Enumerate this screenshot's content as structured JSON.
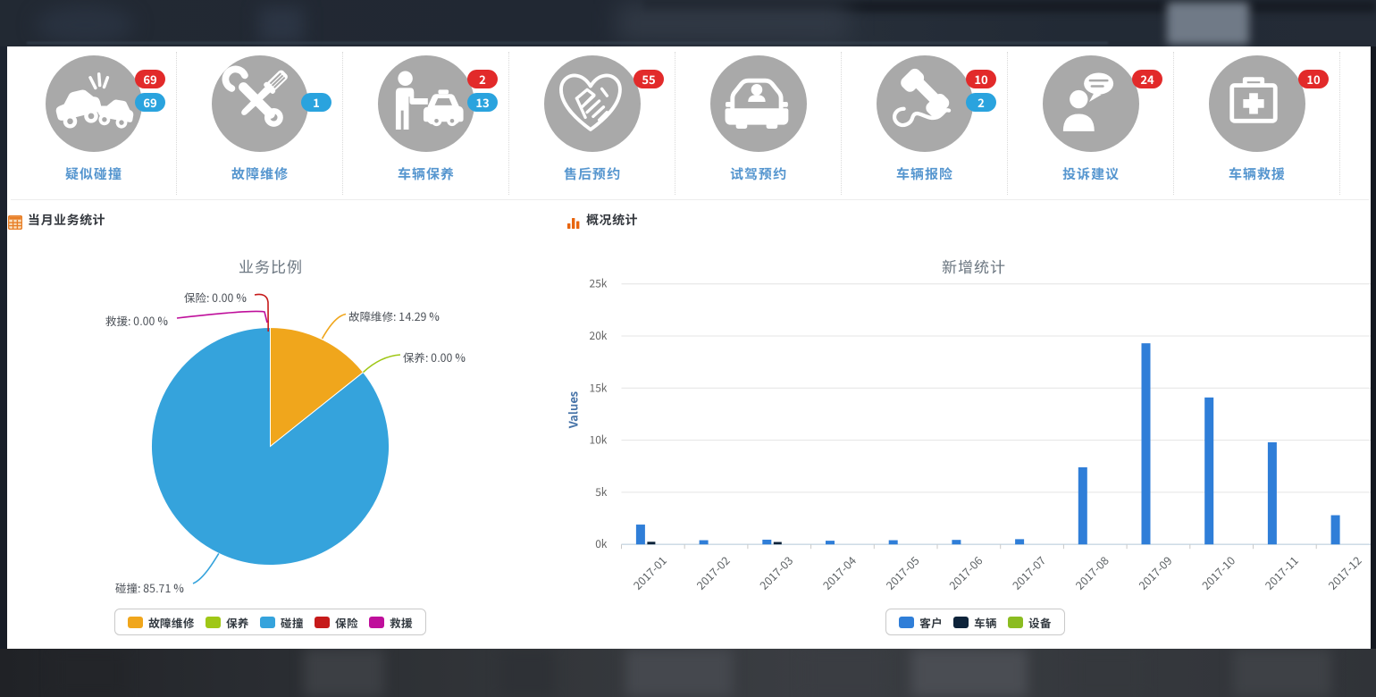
{
  "quick_actions": {
    "badge_colors": {
      "red": "#e22a2a",
      "blue": "#2aa3de"
    },
    "items": [
      {
        "label": "疑似碰撞",
        "icon": "car-crash-icon",
        "badges": {
          "red": "69",
          "blue": "69"
        }
      },
      {
        "label": "故障维修",
        "icon": "repair-tools-icon",
        "badges": {
          "blue": "1"
        }
      },
      {
        "label": "车辆保养",
        "icon": "car-maintenance-icon",
        "badges": {
          "red": "2",
          "blue": "13"
        }
      },
      {
        "label": "售后预约",
        "icon": "handshake-heart-icon",
        "badges": {
          "red": "55"
        }
      },
      {
        "label": "试驾预约",
        "icon": "test-drive-car-icon",
        "badges": {}
      },
      {
        "label": "车辆报险",
        "icon": "phone-handset-icon",
        "badges": {
          "red": "10",
          "blue": "2"
        }
      },
      {
        "label": "投诉建议",
        "icon": "person-speech-bubble-icon",
        "badges": {
          "red": "24"
        }
      },
      {
        "label": "车辆救援",
        "icon": "first-aid-kit-icon",
        "badges": {
          "red": "10"
        }
      }
    ]
  },
  "sections": {
    "left": {
      "title": "当月业务统计",
      "icon": "calendar-grid-icon",
      "icon_color": "#e87e26"
    },
    "right": {
      "title": "概况统计",
      "icon": "mini-bar-chart-icon",
      "icon_color": "#e8650f"
    }
  },
  "chart_data": [
    {
      "type": "pie",
      "title": "业务比例",
      "legend_position": "bottom",
      "label_suffix": " %",
      "slices": [
        {
          "name": "故障维修",
          "value": 14.29,
          "color": "#f0a61c"
        },
        {
          "name": "保养",
          "value": 0.0,
          "color": "#9fc716"
        },
        {
          "name": "碰撞",
          "value": 85.71,
          "color": "#35a3dc"
        },
        {
          "name": "保险",
          "value": 0.0,
          "color": "#c61a1a"
        },
        {
          "name": "救援",
          "value": 0.0,
          "color": "#bf0f9b"
        }
      ]
    },
    {
      "type": "bar",
      "title": "新增统计",
      "ylabel": "Values",
      "ylim": [
        0,
        25000
      ],
      "yticks": [
        "0k",
        "5k",
        "10k",
        "15k",
        "20k",
        "25k"
      ],
      "grid": true,
      "legend_position": "bottom",
      "categories": [
        "2017-01",
        "2017-02",
        "2017-03",
        "2017-04",
        "2017-05",
        "2017-06",
        "2017-07",
        "2017-08",
        "2017-09",
        "2017-10",
        "2017-11",
        "2017-12"
      ],
      "series": [
        {
          "name": "客户",
          "color": "#2f7ed8",
          "values": [
            1900,
            400,
            450,
            350,
            400,
            430,
            500,
            7400,
            19300,
            14100,
            9800,
            2800
          ]
        },
        {
          "name": "车辆",
          "color": "#0d233a",
          "values": [
            250,
            0,
            230,
            0,
            0,
            0,
            0,
            0,
            0,
            0,
            0,
            0
          ]
        },
        {
          "name": "设备",
          "color": "#8bbc21",
          "values": [
            0,
            0,
            0,
            0,
            0,
            0,
            0,
            0,
            0,
            0,
            0,
            0
          ]
        }
      ]
    }
  ]
}
